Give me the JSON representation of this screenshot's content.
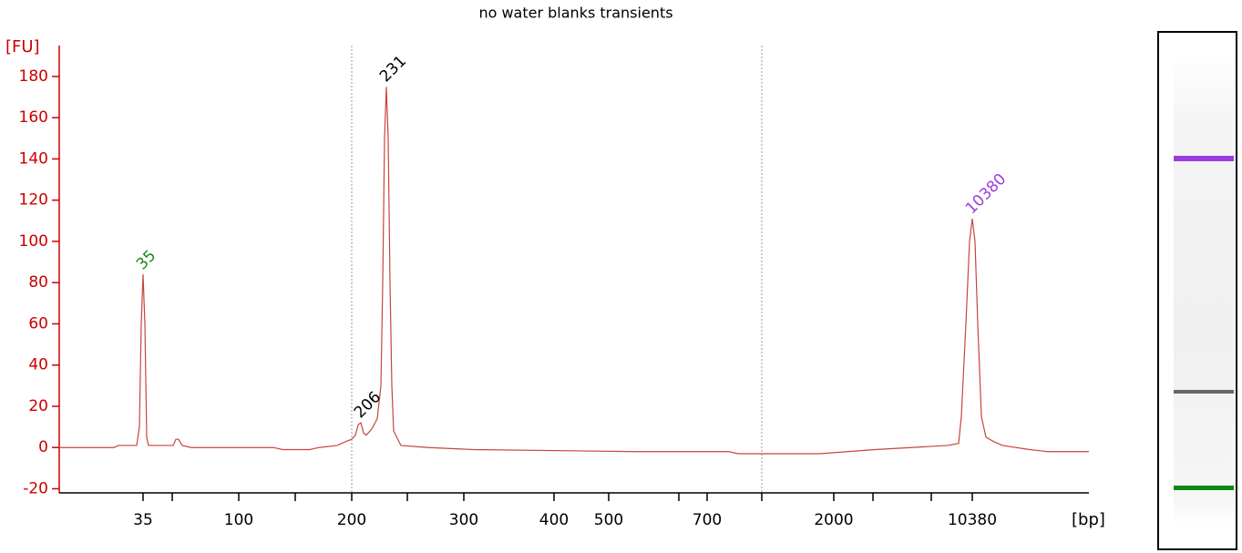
{
  "chart_data": {
    "type": "line",
    "title": "no water blanks transients",
    "y_label": "[FU]",
    "x_label": "[bp]",
    "xlim": [
      0,
      1130
    ],
    "ylim": [
      -22,
      195
    ],
    "yticks": [
      -20,
      0,
      20,
      40,
      60,
      80,
      100,
      120,
      140,
      160,
      180
    ],
    "xticks": [
      {
        "value": 92,
        "label": "35"
      },
      {
        "value": 197,
        "label": "100"
      },
      {
        "value": 321,
        "label": "200"
      },
      {
        "value": 444,
        "label": "300"
      },
      {
        "value": 543,
        "label": "400"
      },
      {
        "value": 603,
        "label": "500"
      },
      {
        "value": 711,
        "label": "700"
      },
      {
        "value": 850,
        "label": "2000"
      },
      {
        "value": 1002,
        "label": "10380"
      }
    ],
    "minor_xticks": [
      124,
      259,
      382,
      680,
      771,
      893,
      957
    ],
    "vlines": [
      321,
      771
    ],
    "series": [
      {
        "color": "#c8453c",
        "x": [
          0,
          60,
          65,
          85,
          88,
          90,
          92,
          94,
          96,
          98,
          125,
          128,
          131,
          135,
          145,
          235,
          245,
          275,
          285,
          305,
          315,
          321,
          325,
          328,
          331,
          334,
          337,
          343,
          349,
          353,
          355,
          357,
          359,
          361,
          363,
          365,
          367,
          375,
          405,
          455,
          635,
          735,
          745,
          835,
          895,
          935,
          975,
          987,
          990,
          995,
          999,
          1002,
          1005,
          1008,
          1012,
          1017,
          1025,
          1035,
          1065,
          1085,
          1130
        ],
        "values": [
          0,
          0,
          1,
          1,
          10,
          60,
          84,
          60,
          5,
          1,
          1,
          4,
          4,
          1,
          0,
          0,
          -1,
          -1,
          0,
          1,
          3,
          4,
          6,
          11,
          12,
          7,
          6,
          9,
          14,
          30,
          80,
          150,
          175,
          150,
          80,
          30,
          8,
          1,
          0,
          -1,
          -2,
          -2,
          -3,
          -3,
          -1,
          0,
          1,
          2,
          15,
          60,
          100,
          111,
          100,
          60,
          15,
          5,
          3,
          1,
          -1,
          -2,
          -2
        ]
      }
    ],
    "annotations": [
      {
        "text": "35",
        "x": 92,
        "y": 84,
        "color": "#1a8a1a"
      },
      {
        "text": "206",
        "x": 331,
        "y": 12,
        "color": "#000000"
      },
      {
        "text": "231",
        "x": 359,
        "y": 175,
        "color": "#000000"
      },
      {
        "text": "10380",
        "x": 1002,
        "y": 111,
        "color": "#9b3ee0"
      }
    ]
  }
}
